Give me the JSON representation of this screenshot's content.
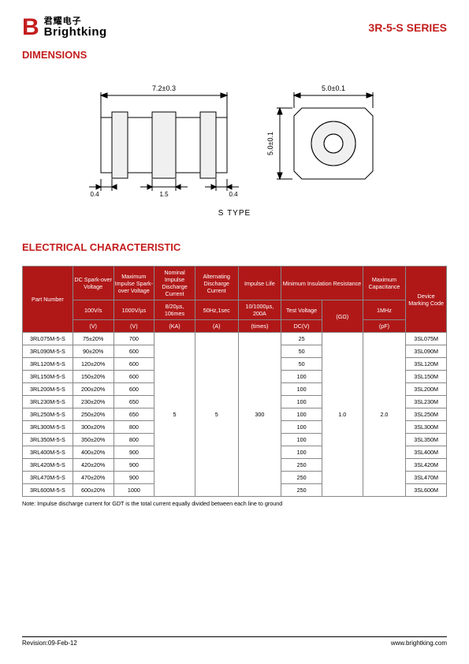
{
  "header": {
    "logo_cn": "君耀电子",
    "logo_en": "Brightking",
    "series": "3R-5-S SERIES"
  },
  "sections": {
    "dimensions": "DIMENSIONS",
    "electrical": "ELECTRICAL CHARACTERISTIC"
  },
  "diagram": {
    "dim_top_left": "7.2±0.3",
    "dim_top_right": "5.0±0.1",
    "dim_side": "5.0±0.1",
    "dim_bottom_a": "0.4",
    "dim_bottom_b": "1.5",
    "dim_bottom_c": "0.4",
    "type_label": "S  TYPE"
  },
  "table": {
    "headers1": {
      "part": "Part Number",
      "dc": "DC Spark-over Voltage",
      "max_imp": "Maximum Impulse Spark-over Voltage",
      "nom_imp": "Nominal Impulse Discharge Current",
      "alt": "Alternating Discharge Current",
      "imp_life": "Impulse Life",
      "min_ins": "Minimum Insulation Resistance",
      "max_cap": "Maximum Capacitance",
      "marking": "Device Marking Code"
    },
    "headers2": {
      "dc": "100V/s",
      "max_imp": "1000V/µs",
      "nom_imp": "8/20µs, 10times",
      "alt": "50Hz,1sec",
      "imp_life": "10/1000µs, 200A",
      "test_v": "Test Voltage",
      "gohm": "(GΩ)",
      "max_cap": "1MHz"
    },
    "headers3": {
      "dc": "(V)",
      "max_imp": "(V)",
      "nom_imp": "(KA)",
      "alt": "(A)",
      "imp_life": "(times)",
      "test_v": "DC(V)",
      "max_cap": "(pF)"
    },
    "shared": {
      "nom_imp": "5",
      "alt": "5",
      "imp_life": "300",
      "gohm": "1.0",
      "max_cap": "2.0"
    },
    "rows": [
      {
        "part": "3RL075M-5-S",
        "dc": "75±20%",
        "max_imp": "700",
        "test_v": "25",
        "mark": "3SL075M"
      },
      {
        "part": "3RL090M-5-S",
        "dc": "90±20%",
        "max_imp": "600",
        "test_v": "50",
        "mark": "3SL090M"
      },
      {
        "part": "3RL120M-5-S",
        "dc": "120±20%",
        "max_imp": "600",
        "test_v": "50",
        "mark": "3SL120M"
      },
      {
        "part": "3RL150M-5-S",
        "dc": "150±20%",
        "max_imp": "600",
        "test_v": "100",
        "mark": "3SL150M"
      },
      {
        "part": "3RL200M-5-S",
        "dc": "200±20%",
        "max_imp": "600",
        "test_v": "100",
        "mark": "3SL200M"
      },
      {
        "part": "3RL230M-5-S",
        "dc": "230±20%",
        "max_imp": "650",
        "test_v": "100",
        "mark": "3SL230M"
      },
      {
        "part": "3RL250M-5-S",
        "dc": "250±20%",
        "max_imp": "650",
        "test_v": "100",
        "mark": "3SL250M"
      },
      {
        "part": "3RL300M-5-S",
        "dc": "300±20%",
        "max_imp": "800",
        "test_v": "100",
        "mark": "3SL300M"
      },
      {
        "part": "3RL350M-5-S",
        "dc": "350±20%",
        "max_imp": "800",
        "test_v": "100",
        "mark": "3SL350M"
      },
      {
        "part": "3RL400M-5-S",
        "dc": "400±20%",
        "max_imp": "900",
        "test_v": "100",
        "mark": "3SL400M"
      },
      {
        "part": "3RL420M-5-S",
        "dc": "420±20%",
        "max_imp": "900",
        "test_v": "250",
        "mark": "3SL420M"
      },
      {
        "part": "3RL470M-5-S",
        "dc": "470±20%",
        "max_imp": "900",
        "test_v": "250",
        "mark": "3SL470M"
      },
      {
        "part": "3RL600M-5-S",
        "dc": "600±20%",
        "max_imp": "1000",
        "test_v": "250",
        "mark": "3SL600M"
      }
    ]
  },
  "note": "Note:  Impulse discharge current for GDT is the total current equally divided between each line to ground",
  "footer": {
    "revision": "Revision:09-Feb-12",
    "url": "www.brightking.com"
  },
  "colors": {
    "brand": "#c41e1e",
    "table_header": "#b01818",
    "border": "#888888"
  }
}
